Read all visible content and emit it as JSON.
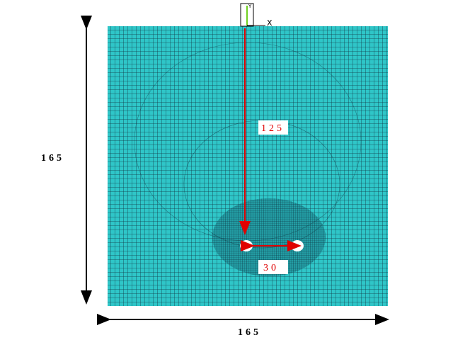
{
  "dimensions": {
    "height": "165",
    "width": "165",
    "depth": "125",
    "spacing": "30"
  },
  "axes": {
    "x": "X",
    "y": "Y"
  }
}
